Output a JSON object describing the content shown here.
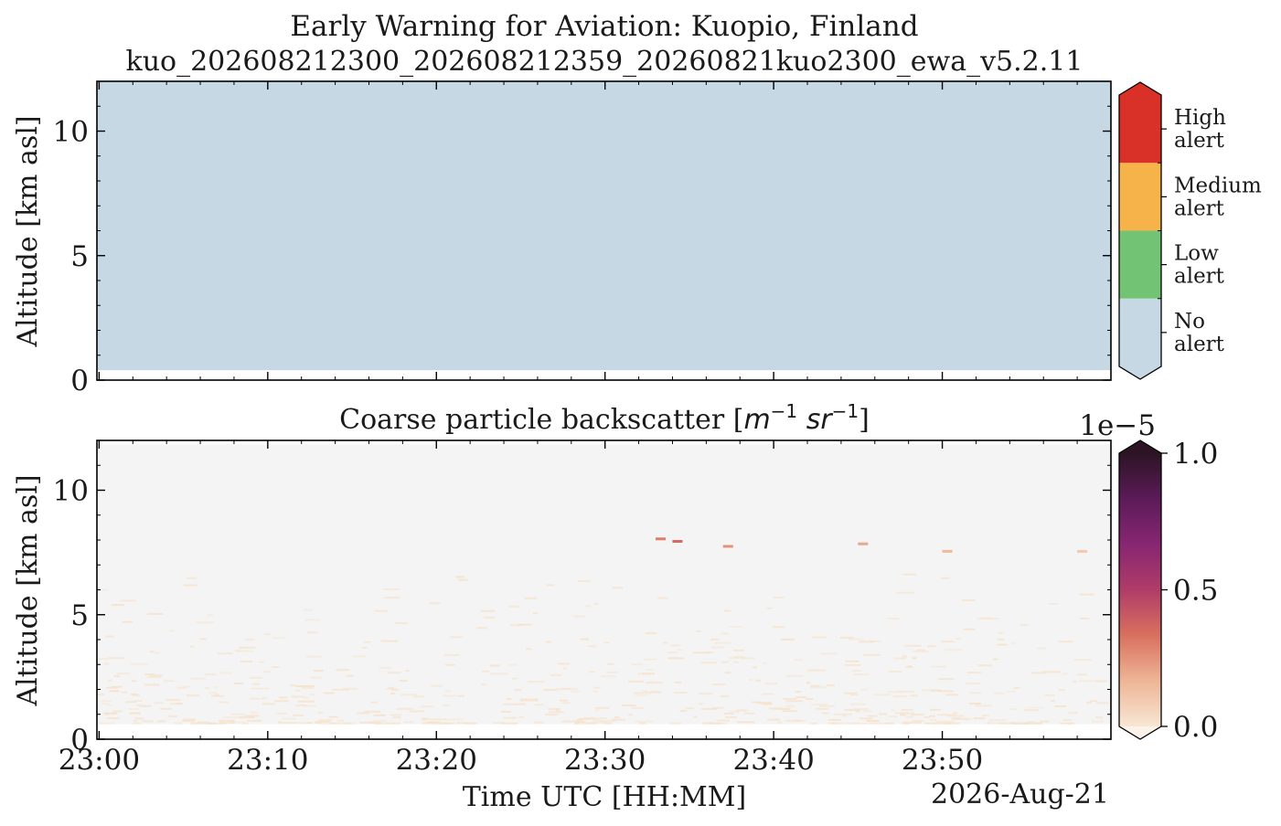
{
  "figure": {
    "title": "Early Warning for Aviation: Kuopio, Finland",
    "subtitle": "kuo_202608212300_202608212359_20260821kuo2300_ewa_v5.2.11",
    "date_label": "2026-Aug-21",
    "xlabel": "Time UTC [HH:MM]"
  },
  "chart_data": [
    {
      "type": "heatmap",
      "name": "alert-panel",
      "title": "",
      "ylabel": "Altitude [km asl]",
      "xlim": [
        "23:00",
        "23:59"
      ],
      "ylim": [
        0,
        12
      ],
      "yticks": [
        "0",
        "5",
        "10"
      ],
      "data_bottom_km": 0.4,
      "data_top_km": 12,
      "alert_level": "No alert",
      "colorbar": {
        "extend": "both",
        "levels": [
          {
            "label": [
              "No",
              "alert"
            ],
            "color": "#c5d8e3"
          },
          {
            "label": [
              "Low",
              "alert"
            ],
            "color": "#72c474"
          },
          {
            "label": [
              "Medium",
              "alert"
            ],
            "color": "#f5b34a"
          },
          {
            "label": [
              "High",
              "alert"
            ],
            "color": "#d93128"
          }
        ]
      }
    },
    {
      "type": "heatmap",
      "name": "coarse-backscatter-panel",
      "title_text": "Coarse particle backscatter ",
      "title_units": [
        "m",
        "−1",
        " sr",
        "−1"
      ],
      "xlabel": "Time UTC [HH:MM]",
      "ylabel": "Altitude [km asl]",
      "xlim": [
        "23:00",
        "23:59"
      ],
      "xticks": [
        "23:00",
        "23:10",
        "23:20",
        "23:30",
        "23:40",
        "23:50"
      ],
      "ylim": [
        0,
        12
      ],
      "yticks": [
        "0",
        "5",
        "10"
      ],
      "data_bottom_km": 0.6,
      "data_top_km": 12,
      "background_color": "#f4f4f4",
      "colorbar": {
        "label_exponent": "1e−5",
        "ticks": [
          "0.0",
          "0.5",
          "1.0"
        ],
        "vmin": 0,
        "vmax": 1,
        "extend": "both",
        "colors": [
          "#f7e6d4",
          "#eeb596",
          "#d9705f",
          "#b03c68",
          "#872672",
          "#5b1b58",
          "#2c1424"
        ]
      },
      "layers_note_values": [
        {
          "time": "23:33",
          "altitude_km": 8.1,
          "value": 0.3
        },
        {
          "time": "23:34",
          "altitude_km": 8.0,
          "value": 0.35
        },
        {
          "time": "23:37",
          "altitude_km": 7.8,
          "value": 0.25
        },
        {
          "time": "23:45",
          "altitude_km": 7.9,
          "value": 0.2
        },
        {
          "time": "23:50",
          "altitude_km": 7.6,
          "value": 0.15
        },
        {
          "time": "23:58",
          "altitude_km": 7.6,
          "value": 0.1
        }
      ]
    }
  ]
}
